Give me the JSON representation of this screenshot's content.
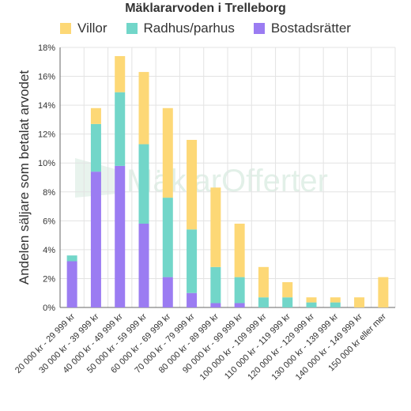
{
  "chart_data": {
    "type": "bar",
    "stacked": true,
    "title": "Mäklararvoden i Trelleborg",
    "ylabel": "Andelen säljare som betalat arvodet",
    "xlabel": "",
    "ylim": [
      0,
      18
    ],
    "yticks": [
      "0%",
      "2%",
      "4%",
      "6%",
      "8%",
      "10%",
      "12%",
      "14%",
      "16%",
      "18%"
    ],
    "grid": true,
    "legend_position": "top",
    "watermark": "MäklarOfferter",
    "categories": [
      "20 000 kr - 29 999 kr",
      "30 000 kr - 39 999 kr",
      "40 000 kr - 49 999 kr",
      "50 000 kr - 59 999 kr",
      "60 000 kr - 69 999 kr",
      "70 000 kr - 79 999 kr",
      "80 000 kr - 89 999 kr",
      "90 000 kr - 99 999 kr",
      "100 000 kr - 109 999 kr",
      "110 000 kr - 119 999 kr",
      "120 000 kr - 129 999 kr",
      "130 000 kr - 139 999 kr",
      "140 000 kr - 149 999 kr",
      "150 000 kr eller mer"
    ],
    "series": [
      {
        "name": "Bostadsrätter",
        "color": "#9b7cf2",
        "values": [
          3.2,
          9.4,
          9.8,
          5.8,
          2.1,
          1.0,
          0.3,
          0.3,
          0,
          0,
          0,
          0,
          0,
          0
        ]
      },
      {
        "name": "Radhus/parhus",
        "color": "#72d6c9",
        "values": [
          0.4,
          3.3,
          5.1,
          5.5,
          5.5,
          4.4,
          2.5,
          1.8,
          0.7,
          0.7,
          0.35,
          0.35,
          0,
          0
        ]
      },
      {
        "name": "Villor",
        "color": "#fdd876",
        "values": [
          0,
          1.1,
          2.5,
          5.0,
          6.2,
          6.2,
          5.5,
          3.7,
          2.1,
          1.05,
          0.35,
          0.35,
          0.7,
          2.1
        ]
      }
    ],
    "legend_order": [
      "Villor",
      "Radhus/parhus",
      "Bostadsrätter"
    ]
  }
}
